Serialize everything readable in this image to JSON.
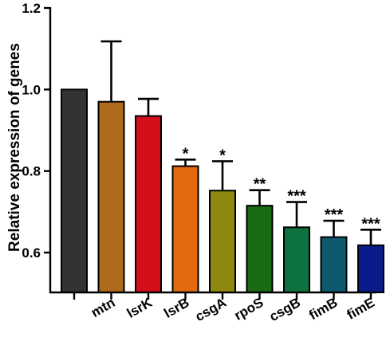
{
  "chart_data": {
    "type": "bar",
    "ylabel": "Relative expression of genes",
    "ylim": [
      0.5,
      1.2
    ],
    "yticks": [
      0.6,
      0.8,
      1.0,
      1.2
    ],
    "ytick_labels": [
      "0.6",
      "0.8",
      "1.0",
      "1.2"
    ],
    "categories": [
      "",
      "mtn",
      "lsrK",
      "lsrB",
      "csgA",
      "rpoS",
      "csgB",
      "fimB",
      "fimE"
    ],
    "values": [
      1.0,
      0.97,
      0.935,
      0.812,
      0.752,
      0.715,
      0.662,
      0.638,
      0.618
    ],
    "error_upper": [
      0.0,
      0.148,
      0.042,
      0.016,
      0.072,
      0.038,
      0.062,
      0.04,
      0.038
    ],
    "significance": [
      "",
      "",
      "",
      "*",
      "*",
      "**",
      "***",
      "***",
      "***"
    ],
    "colors": [
      "#333333",
      "#b06a1c",
      "#d30f1a",
      "#e46a10",
      "#8e8a10",
      "#1a6a16",
      "#0d7240",
      "#0d5a6e",
      "#0a1c8c"
    ]
  }
}
